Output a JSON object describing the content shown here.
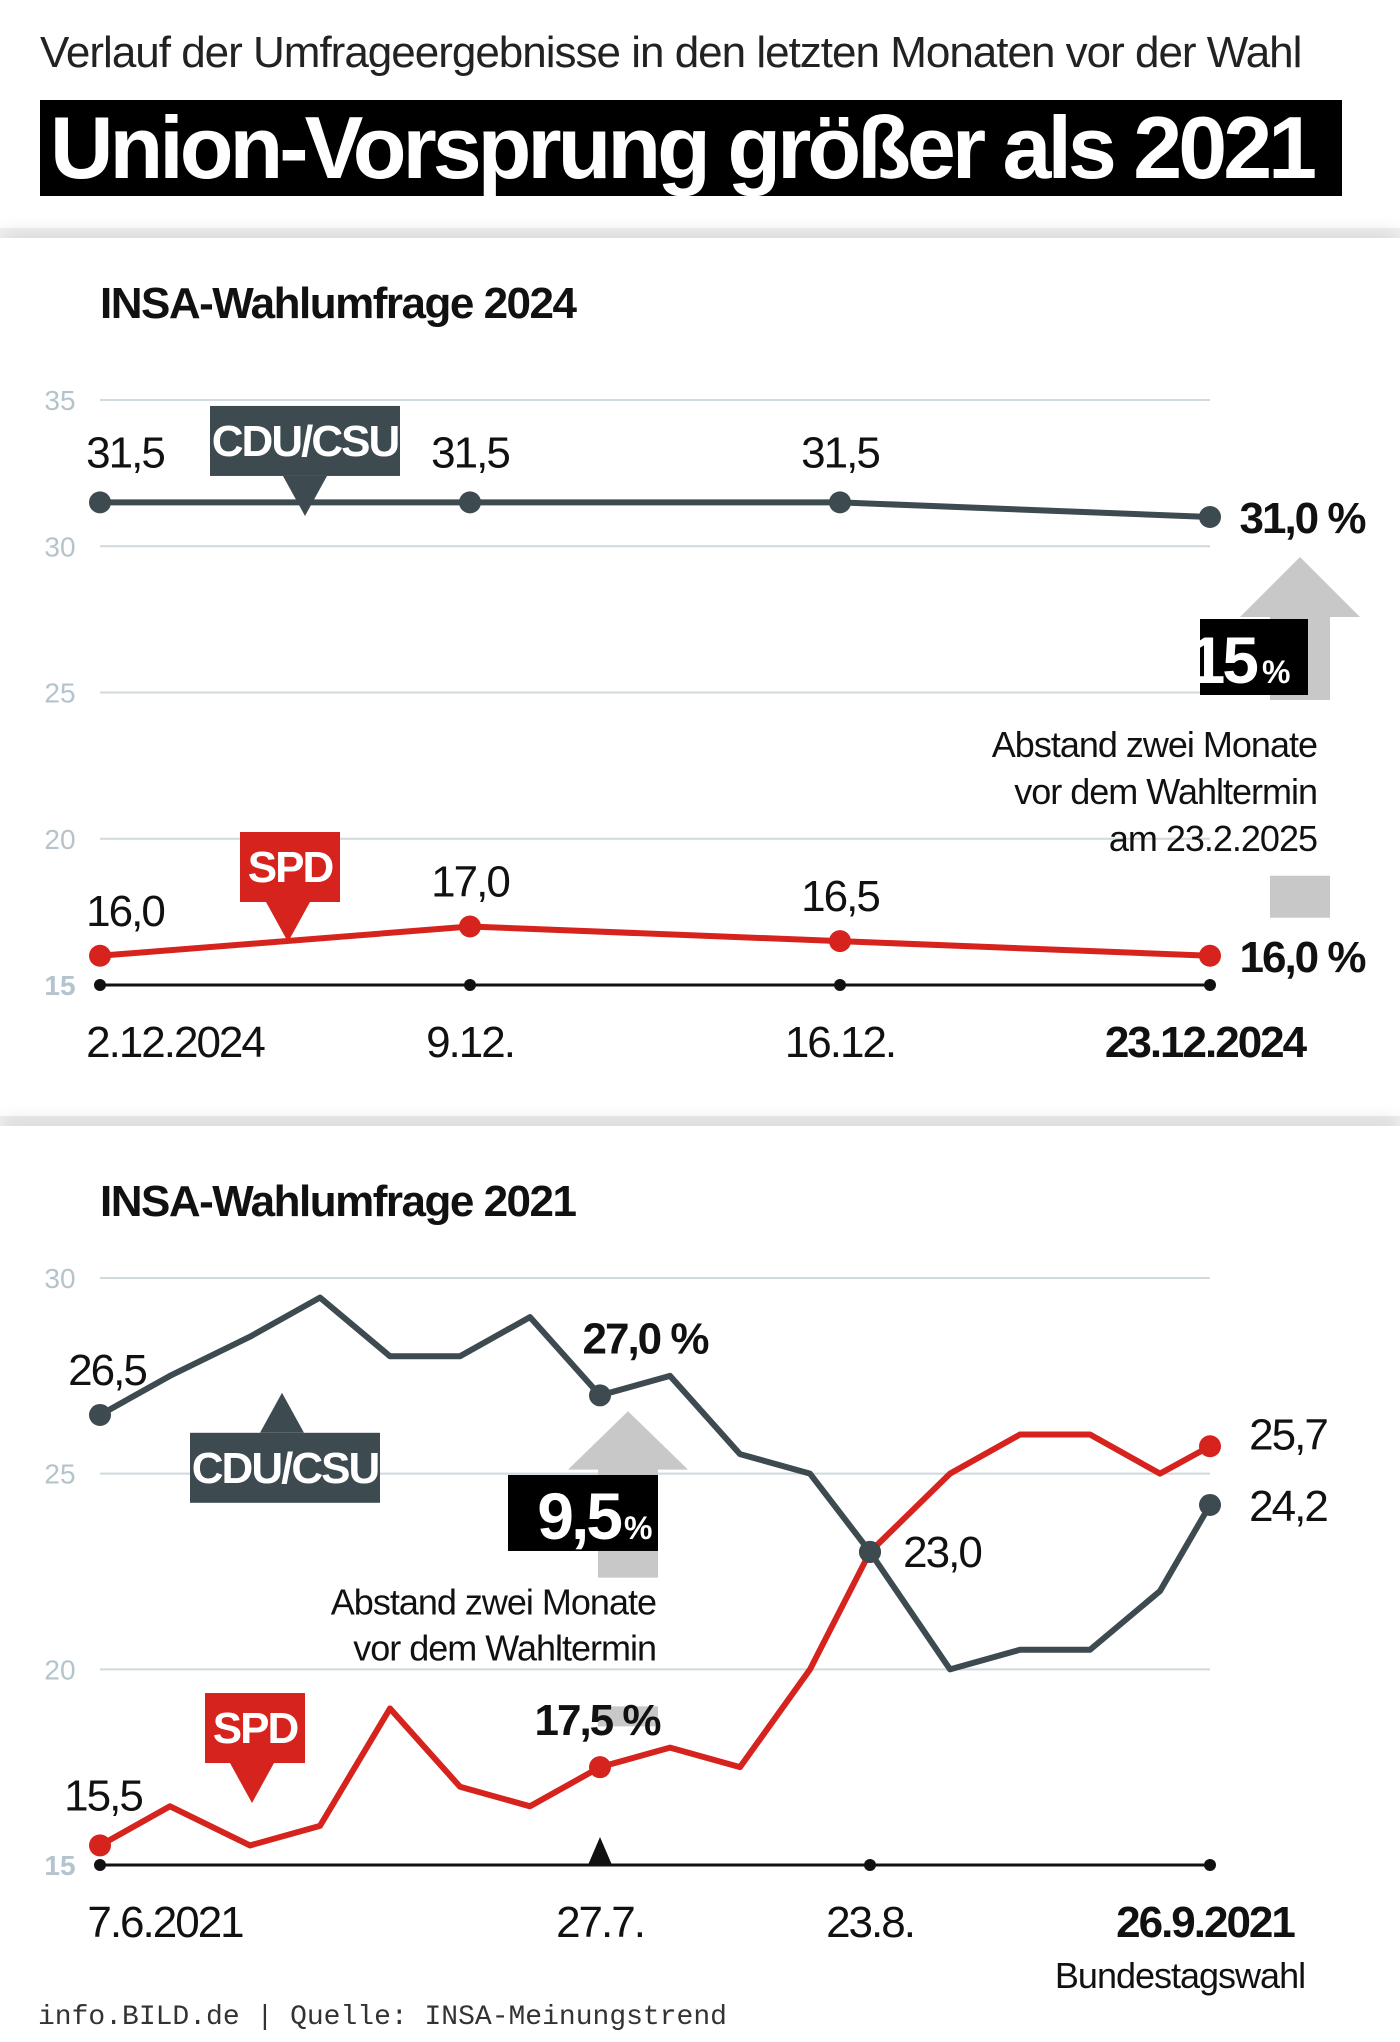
{
  "header": {
    "kicker": "Verlauf der Umfrageergebnisse in den letzten Monaten vor der Wahl",
    "headline": "Union-Vorsprung größer als 2021"
  },
  "footer": {
    "site": "info.BILD.de",
    "separator": " | ",
    "source": "Quelle: INSA-Meinungstrend"
  },
  "colors": {
    "cdu": "#3d4a4f",
    "spd": "#d7231d",
    "grid": "#cfd9de",
    "gap_arrow": "#c8c8c8"
  },
  "chart_data": [
    {
      "type": "line",
      "title": "INSA-Wahlumfrage 2024",
      "ylim": [
        15,
        35
      ],
      "yticks": [
        15,
        20,
        25,
        30,
        35
      ],
      "grid": true,
      "x": [
        "2.12.2024",
        "9.12.",
        "16.12.",
        "23.12.2024"
      ],
      "series": [
        {
          "name": "CDU/CSU",
          "values": [
            31.5,
            31.5,
            31.5,
            31.0
          ],
          "labels": [
            "31,5",
            "31,5",
            "31,5",
            "31,0 %"
          ]
        },
        {
          "name": "SPD",
          "values": [
            16.0,
            17.0,
            16.5,
            16.0
          ],
          "labels": [
            "16,0",
            "17,0",
            "16,5",
            "16,0 %"
          ]
        }
      ],
      "gap": {
        "value": "15",
        "unit": "%",
        "note": [
          "Abstand zwei Monate",
          "vor dem Wahltermin",
          "am 23.2.2025"
        ]
      }
    },
    {
      "type": "line",
      "title": "INSA-Wahlumfrage 2021",
      "ylim": [
        15,
        30
      ],
      "yticks": [
        15,
        20,
        25,
        30
      ],
      "grid": true,
      "x_range": [
        "7.6.2021",
        "26.9.2021"
      ],
      "x_labels": [
        "7.6.2021",
        "27.7.",
        "23.8.",
        "26.9.2021"
      ],
      "x_sublabel": "Bundestagswahl",
      "series": [
        {
          "name": "CDU/CSU",
          "points": [
            [
              "7.6.2021",
              26.5
            ],
            [
              "14.6.2021",
              27.5
            ],
            [
              "22.6.2021",
              28.5
            ],
            [
              "29.6.2021",
              29.5
            ],
            [
              "6.7.2021",
              28.0
            ],
            [
              "13.7.2021",
              28.0
            ],
            [
              "20.7.2021",
              29.0
            ],
            [
              "27.7.2021",
              27.0
            ],
            [
              "3.8.2021",
              27.5
            ],
            [
              "10.8.2021",
              25.5
            ],
            [
              "17.8.2021",
              25.0
            ],
            [
              "23.8.2021",
              23.0
            ],
            [
              "31.8.2021",
              20.0
            ],
            [
              "7.9.2021",
              20.5
            ],
            [
              "14.9.2021",
              20.5
            ],
            [
              "21.9.2021",
              22.0
            ],
            [
              "26.9.2021",
              24.2
            ]
          ],
          "labels": {
            "7.6.2021": "26,5",
            "27.7.2021": "27,0 %",
            "23.8.2021": "23,0",
            "26.9.2021": "24,2"
          }
        },
        {
          "name": "SPD",
          "points": [
            [
              "7.6.2021",
              15.5
            ],
            [
              "14.6.2021",
              16.5
            ],
            [
              "22.6.2021",
              15.5
            ],
            [
              "29.6.2021",
              16.0
            ],
            [
              "6.7.2021",
              19.0
            ],
            [
              "13.7.2021",
              17.0
            ],
            [
              "20.7.2021",
              16.5
            ],
            [
              "27.7.2021",
              17.5
            ],
            [
              "3.8.2021",
              18.0
            ],
            [
              "10.8.2021",
              17.5
            ],
            [
              "17.8.2021",
              20.0
            ],
            [
              "23.8.2021",
              23.0
            ],
            [
              "31.8.2021",
              25.0
            ],
            [
              "7.9.2021",
              26.0
            ],
            [
              "14.9.2021",
              26.0
            ],
            [
              "21.9.2021",
              25.0
            ],
            [
              "26.9.2021",
              25.7
            ]
          ],
          "labels": {
            "7.6.2021": "15,5",
            "27.7.2021": "17,5 %",
            "26.9.2021": "25,7"
          }
        }
      ],
      "gap": {
        "value": "9,5",
        "unit": "%",
        "note": [
          "Abstand zwei Monate",
          "vor dem Wahltermin"
        ]
      }
    }
  ]
}
